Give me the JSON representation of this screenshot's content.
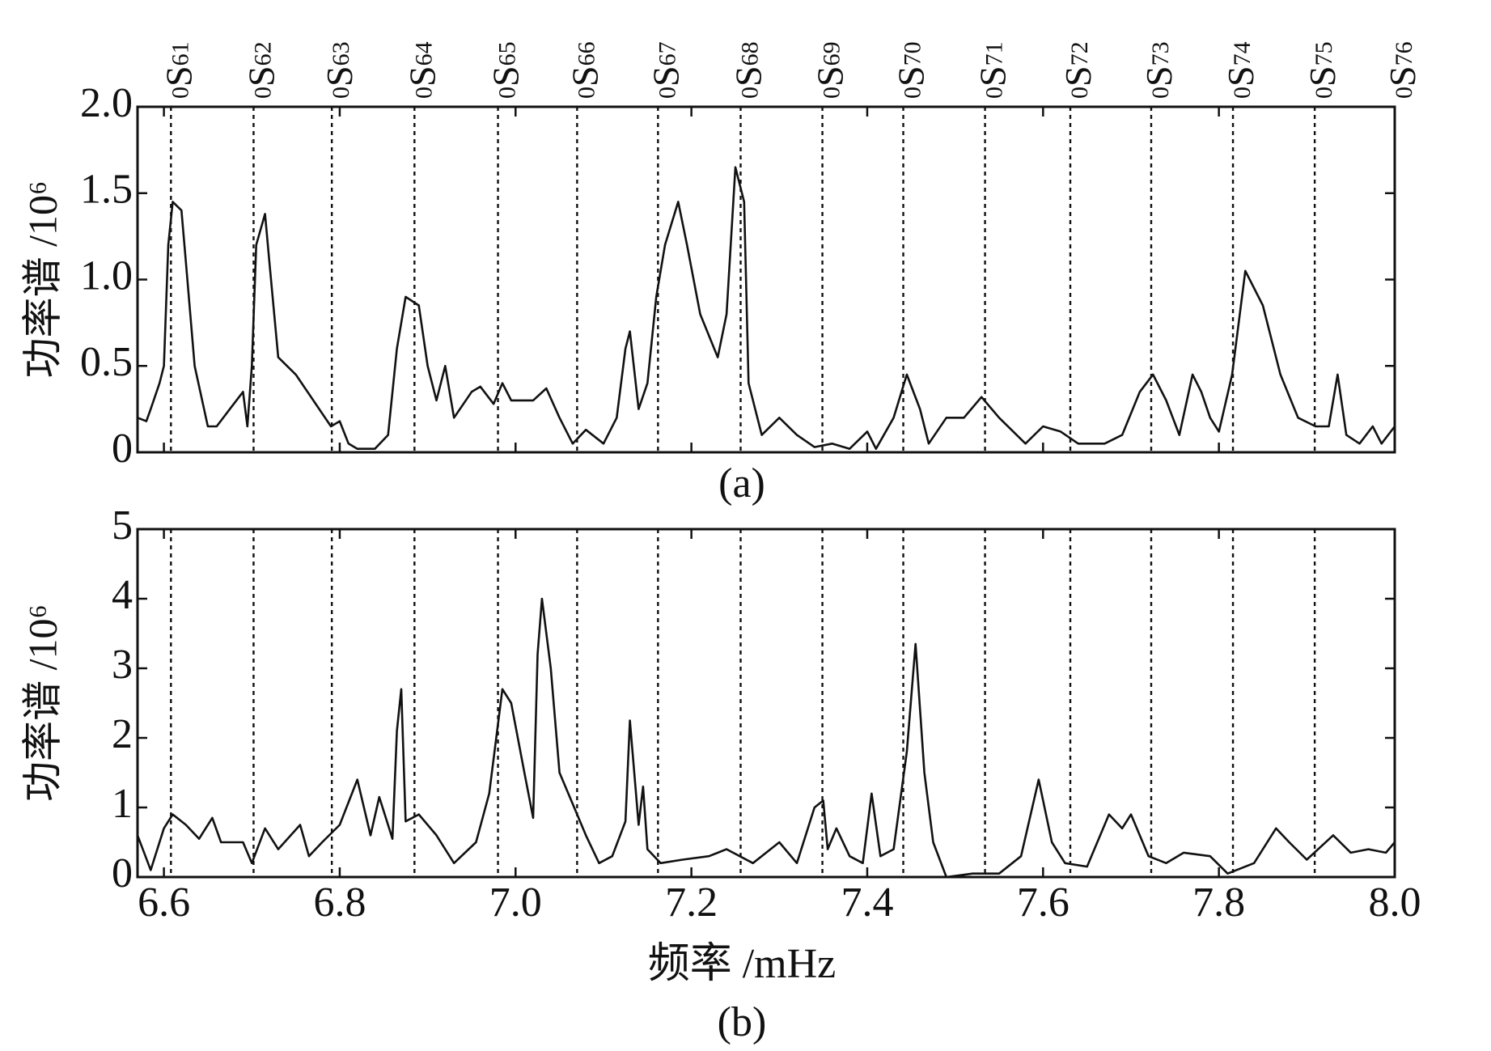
{
  "chart_data": [
    {
      "type": "line",
      "caption": "(a)",
      "ylabel": "功率谱 /10⁶",
      "color": "#111111",
      "xlim": [
        6.57,
        8.0
      ],
      "ylim": [
        0,
        2
      ],
      "yticks": [
        {
          "value": 0,
          "label": "0"
        },
        {
          "value": 0.5,
          "label": "0.5"
        },
        {
          "value": 1,
          "label": "1.0"
        },
        {
          "value": 1.5,
          "label": "1.5"
        },
        {
          "value": 2,
          "label": "2.0"
        }
      ],
      "mode_lines": [
        {
          "value": 6.608,
          "label": "0S61"
        },
        {
          "value": 6.702,
          "label": "0S62"
        },
        {
          "value": 6.791,
          "label": "0S63"
        },
        {
          "value": 6.885,
          "label": "0S64"
        },
        {
          "value": 6.98,
          "label": "0S65"
        },
        {
          "value": 7.07,
          "label": "0S66"
        },
        {
          "value": 7.162,
          "label": "0S67"
        },
        {
          "value": 7.256,
          "label": "0S68"
        },
        {
          "value": 7.349,
          "label": "0S69"
        },
        {
          "value": 7.441,
          "label": "0S70"
        },
        {
          "value": 7.534,
          "label": "0S71"
        },
        {
          "value": 7.631,
          "label": "0S72"
        },
        {
          "value": 7.723,
          "label": "0S73"
        },
        {
          "value": 7.816,
          "label": "0S74"
        },
        {
          "value": 7.909,
          "label": "0S75"
        },
        {
          "value": 8.0,
          "label": "0S76"
        }
      ],
      "x": [
        6.57,
        6.58,
        6.585,
        6.595,
        6.6,
        6.605,
        6.61,
        6.62,
        6.625,
        6.635,
        6.65,
        6.66,
        6.675,
        6.69,
        6.695,
        6.7,
        6.705,
        6.715,
        6.72,
        6.73,
        6.75,
        6.77,
        6.79,
        6.8,
        6.81,
        6.82,
        6.84,
        6.855,
        6.865,
        6.875,
        6.89,
        6.9,
        6.91,
        6.92,
        6.93,
        6.95,
        6.96,
        6.975,
        6.985,
        6.995,
        7.02,
        7.035,
        7.05,
        7.065,
        7.08,
        7.1,
        7.115,
        7.125,
        7.13,
        7.14,
        7.15,
        7.16,
        7.17,
        7.185,
        7.195,
        7.21,
        7.23,
        7.24,
        7.25,
        7.26,
        7.265,
        7.28,
        7.3,
        7.32,
        7.34,
        7.36,
        7.38,
        7.4,
        7.41,
        7.43,
        7.445,
        7.46,
        7.47,
        7.49,
        7.51,
        7.53,
        7.55,
        7.58,
        7.6,
        7.62,
        7.64,
        7.67,
        7.69,
        7.71,
        7.725,
        7.74,
        7.755,
        7.77,
        7.78,
        7.79,
        7.8,
        7.815,
        7.83,
        7.85,
        7.87,
        7.89,
        7.91,
        7.925,
        7.935,
        7.945,
        7.96,
        7.975,
        7.985,
        8.0
      ],
      "values": [
        0.2,
        0.18,
        0.25,
        0.4,
        0.5,
        1.2,
        1.45,
        1.4,
        1.1,
        0.5,
        0.15,
        0.15,
        0.25,
        0.35,
        0.15,
        0.5,
        1.2,
        1.38,
        1.1,
        0.55,
        0.45,
        0.3,
        0.15,
        0.18,
        0.05,
        0.02,
        0.02,
        0.1,
        0.6,
        0.9,
        0.85,
        0.5,
        0.3,
        0.5,
        0.2,
        0.35,
        0.38,
        0.28,
        0.4,
        0.3,
        0.3,
        0.37,
        0.2,
        0.05,
        0.13,
        0.05,
        0.2,
        0.6,
        0.7,
        0.25,
        0.4,
        0.9,
        1.2,
        1.45,
        1.2,
        0.8,
        0.55,
        0.8,
        1.65,
        1.45,
        0.4,
        0.1,
        0.2,
        0.1,
        0.03,
        0.05,
        0.02,
        0.12,
        0.02,
        0.2,
        0.45,
        0.25,
        0.05,
        0.2,
        0.2,
        0.32,
        0.2,
        0.05,
        0.15,
        0.12,
        0.05,
        0.05,
        0.1,
        0.35,
        0.45,
        0.3,
        0.1,
        0.45,
        0.35,
        0.2,
        0.12,
        0.45,
        1.05,
        0.85,
        0.45,
        0.2,
        0.15,
        0.15,
        0.45,
        0.1,
        0.05,
        0.15,
        0.05,
        0.15
      ]
    },
    {
      "type": "line",
      "caption": "(b)",
      "ylabel": "功率谱 /10⁶",
      "xlabel": "频率 /mHz",
      "color": "#111111",
      "xlim": [
        6.57,
        8.0
      ],
      "ylim": [
        0,
        5
      ],
      "xticks": [
        6.6,
        6.8,
        {
          "value": 7,
          "label": "7.0"
        },
        7.2,
        7.4,
        7.6,
        7.8,
        {
          "value": 8,
          "label": "8.0"
        }
      ],
      "yticks": [
        0,
        1,
        2,
        3,
        4,
        5
      ],
      "x": [
        6.57,
        6.585,
        6.6,
        6.61,
        6.625,
        6.64,
        6.655,
        6.665,
        6.69,
        6.7,
        6.715,
        6.73,
        6.755,
        6.765,
        6.78,
        6.8,
        6.82,
        6.835,
        6.845,
        6.86,
        6.865,
        6.87,
        6.875,
        6.89,
        6.91,
        6.93,
        6.955,
        6.97,
        6.985,
        6.995,
        7.01,
        7.02,
        7.025,
        7.03,
        7.04,
        7.05,
        7.07,
        7.08,
        7.095,
        7.11,
        7.125,
        7.13,
        7.14,
        7.145,
        7.15,
        7.165,
        7.19,
        7.22,
        7.24,
        7.27,
        7.3,
        7.32,
        7.34,
        7.35,
        7.355,
        7.365,
        7.38,
        7.395,
        7.405,
        7.415,
        7.43,
        7.445,
        7.455,
        7.465,
        7.475,
        7.49,
        7.52,
        7.55,
        7.575,
        7.595,
        7.61,
        7.625,
        7.65,
        7.675,
        7.69,
        7.7,
        7.72,
        7.74,
        7.76,
        7.79,
        7.81,
        7.84,
        7.865,
        7.88,
        7.9,
        7.93,
        7.95,
        7.97,
        7.99,
        8.0
      ],
      "values": [
        0.6,
        0.1,
        0.7,
        0.9,
        0.75,
        0.55,
        0.85,
        0.5,
        0.5,
        0.2,
        0.7,
        0.4,
        0.75,
        0.3,
        0.5,
        0.75,
        1.4,
        0.6,
        1.15,
        0.55,
        2.1,
        2.7,
        0.8,
        0.9,
        0.6,
        0.2,
        0.5,
        1.2,
        2.7,
        2.5,
        1.5,
        0.85,
        3.2,
        4.0,
        3.0,
        1.5,
        0.9,
        0.6,
        0.2,
        0.3,
        0.8,
        2.25,
        0.75,
        1.3,
        0.4,
        0.2,
        0.25,
        0.3,
        0.4,
        0.2,
        0.5,
        0.2,
        1.0,
        1.1,
        0.4,
        0.7,
        0.3,
        0.2,
        1.2,
        0.3,
        0.4,
        1.8,
        3.35,
        1.5,
        0.5,
        0,
        0.05,
        0.05,
        0.3,
        1.4,
        0.5,
        0.2,
        0.15,
        0.9,
        0.7,
        0.9,
        0.3,
        0.2,
        0.35,
        0.3,
        0.05,
        0.2,
        0.7,
        0.5,
        0.25,
        0.6,
        0.35,
        0.4,
        0.35,
        0.5
      ]
    }
  ]
}
